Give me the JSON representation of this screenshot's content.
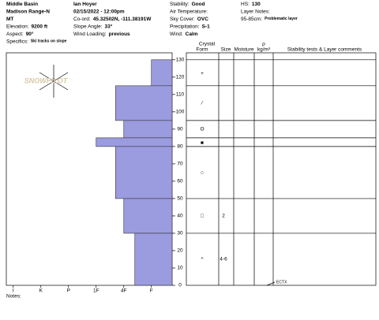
{
  "header": {
    "columns": [
      [
        {
          "text": "Middle Basin"
        },
        {
          "text": "Madison Range-N"
        },
        {
          "text": "MT"
        },
        {
          "label": "Elevation:",
          "value": "9200 ft"
        },
        {
          "label": "Aspect:",
          "value": "90°"
        },
        {
          "label": "Specifics:",
          "value": "Ski tracks on slope"
        }
      ],
      [
        {
          "text": "Ian Hoyer"
        },
        {
          "text": "02/15/2022 - 12:00pm"
        },
        {
          "label": "Co-ord:",
          "value": "45.32502N, -111.38191W"
        },
        {
          "label": "Slope Angle:",
          "value": "33°"
        },
        {
          "label": "Wind Loading:",
          "value": "previous"
        }
      ],
      [
        {
          "label": "Stability:",
          "value": "Good"
        },
        {
          "label": "Air Temperature:",
          "value": ""
        },
        {
          "label": "Sky Cover:",
          "value": "OVC"
        },
        {
          "label": "Precipitation:",
          "value": "S-1"
        },
        {
          "label": "Wind:",
          "value": "Calm"
        }
      ],
      [
        {
          "label": "HS:",
          "value": "130"
        },
        {
          "label": "Layer Notes:",
          "value": ""
        },
        {
          "label": "95-85cm:",
          "value": "Problematic layer"
        }
      ]
    ]
  },
  "logo": "SNOWPILOT",
  "chart_data": {
    "type": "snow-profile",
    "column_headers": {
      "crystal": "Crystal",
      "form": "Form",
      "size": "Size",
      "moisture": "Moisture",
      "rho": "ρ",
      "density_unit": "kg/m³",
      "comments": "Stability tests & Layer comments"
    },
    "depth_lim": [
      0,
      134
    ],
    "depth_ticks": [
      0,
      10,
      20,
      30,
      40,
      50,
      60,
      70,
      80,
      90,
      100,
      110,
      120,
      130
    ],
    "hardness_lim": [
      0.25,
      6.25
    ],
    "hardness_ticks": [
      {
        "value": 6,
        "label": "I"
      },
      {
        "value": 5,
        "label": "K"
      },
      {
        "value": 4,
        "label": "P"
      },
      {
        "value": 3,
        "label": "1F"
      },
      {
        "value": 2,
        "label": "4F"
      },
      {
        "value": 1,
        "label": "F"
      }
    ],
    "color": "#9b9be0",
    "layers": [
      {
        "top": 130,
        "bottom": 115,
        "hardness": 1
      },
      {
        "top": 115,
        "bottom": 95,
        "hardness": 2.3
      },
      {
        "top": 95,
        "bottom": 85,
        "hardness": 2
      },
      {
        "top": 85,
        "bottom": 80,
        "hardness": 3
      },
      {
        "top": 80,
        "bottom": 50,
        "hardness": 2.3
      },
      {
        "top": 50,
        "bottom": 30,
        "hardness": 2
      },
      {
        "top": 30,
        "bottom": 0,
        "hardness": 1.6
      }
    ],
    "grains": [
      {
        "depth": 122,
        "form": "+",
        "size": ""
      },
      {
        "depth": 105,
        "form": "⁄",
        "size": ""
      },
      {
        "depth": 90,
        "form": "ʘ",
        "size": ""
      },
      {
        "depth": 82,
        "form": "■",
        "size": ""
      },
      {
        "depth": 65,
        "form": "⌂",
        "size": ""
      },
      {
        "depth": 40,
        "form": "□",
        "size": "2"
      },
      {
        "depth": 15,
        "form": "^",
        "size": "4-6"
      }
    ],
    "tests": [
      {
        "depth": 0,
        "label": "ECTX"
      }
    ]
  },
  "notes": "Notes:"
}
